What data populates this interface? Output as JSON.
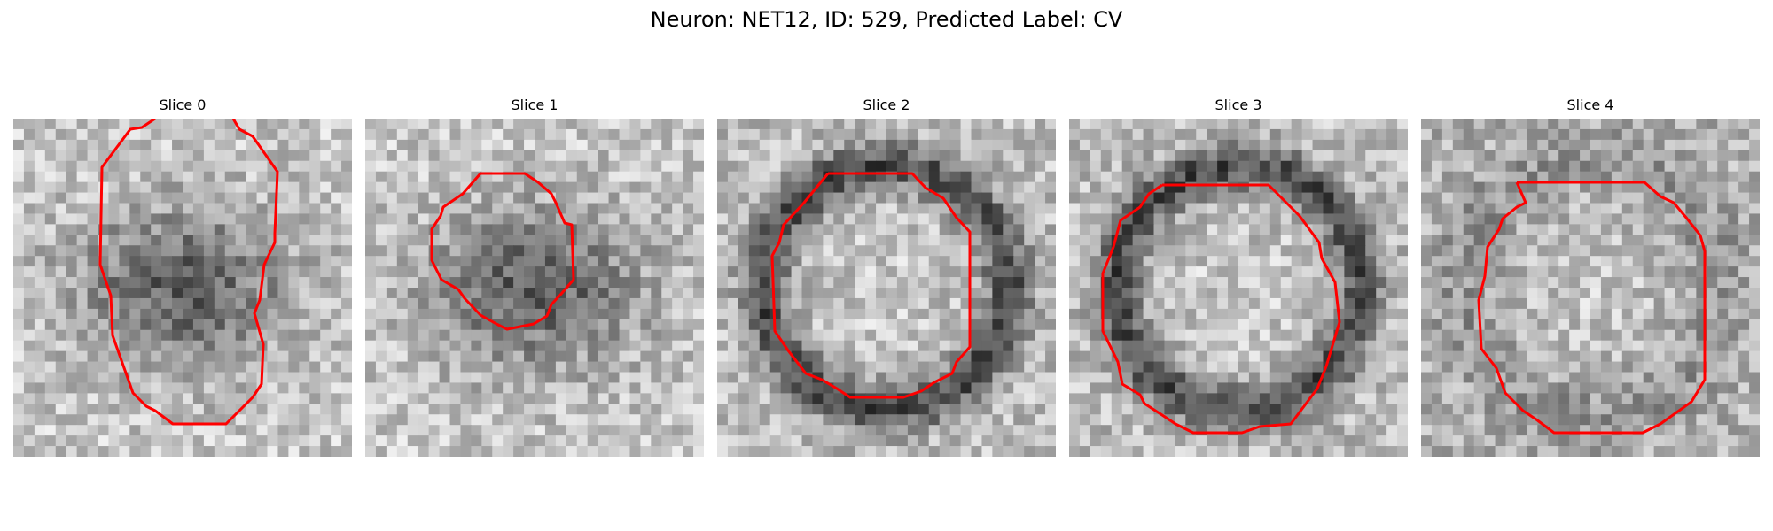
{
  "figure": {
    "title": "Neuron: NET12, ID: 529, Predicted Label: CV"
  },
  "contour_color": "#ff0000",
  "panels": [
    {
      "title": "Slice 0",
      "dark_region": "blob",
      "seed": 11
    },
    {
      "title": "Slice 1",
      "dark_region": "blob",
      "seed": 23
    },
    {
      "title": "Slice 2",
      "dark_region": "ring",
      "seed": 37
    },
    {
      "title": "Slice 3",
      "dark_region": "ring",
      "seed": 51
    },
    {
      "title": "Slice 4",
      "dark_region": "faint",
      "seed": 67
    }
  ]
}
